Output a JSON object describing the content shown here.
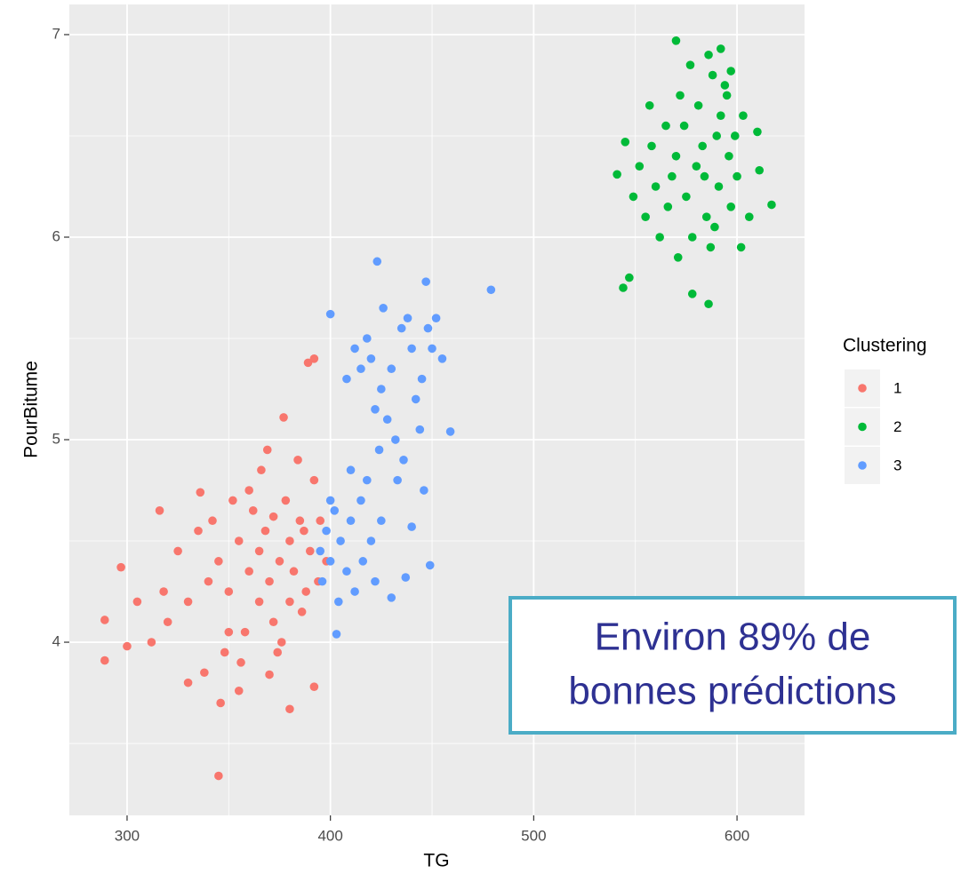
{
  "chart_data": {
    "type": "scatter",
    "x_label": "TG",
    "y_label": "PourBitume",
    "xlim": [
      271.6,
      633.2
    ],
    "ylim": [
      3.145,
      7.149
    ],
    "xticks": [
      300,
      400,
      500,
      600
    ],
    "yticks": [
      4,
      5,
      6,
      7
    ],
    "x_minor_grid": [
      350,
      450,
      550
    ],
    "y_minor_grid": [
      3.5,
      4.5,
      5.5,
      6.5
    ],
    "grid": true,
    "legend_title": "Clustering",
    "legend_position": "right",
    "annotation": {
      "lines": [
        "Environ 89% de",
        "bonnes prédictions"
      ]
    },
    "series": [
      {
        "name": "1",
        "color": "#F8766D",
        "x": [
          375,
          380,
          370,
          385,
          365,
          390,
          360,
          378,
          372,
          388,
          355,
          368,
          382,
          395,
          350,
          362,
          376,
          392,
          345,
          358,
          384,
          340,
          366,
          398,
          335,
          352,
          374,
          330,
          386,
          325,
          348,
          369,
          320,
          360,
          380,
          394,
          342,
          318,
          356,
          372,
          312,
          338,
          365,
          387,
          305,
          350,
          377,
          392,
          389,
          345,
          289,
          289,
          297,
          300,
          380,
          346,
          330,
          392,
          316,
          336,
          370,
          355
        ],
        "values": [
          4.4,
          4.5,
          4.3,
          4.6,
          4.2,
          4.45,
          4.35,
          4.7,
          4.1,
          4.25,
          4.5,
          4.55,
          4.35,
          4.6,
          4.25,
          4.65,
          4.0,
          4.8,
          4.4,
          4.05,
          4.9,
          4.3,
          4.85,
          4.4,
          4.55,
          4.7,
          3.95,
          4.2,
          4.15,
          4.45,
          3.95,
          4.95,
          4.1,
          4.75,
          4.2,
          4.3,
          4.6,
          4.25,
          3.9,
          4.62,
          4.0,
          3.85,
          4.45,
          4.55,
          4.2,
          4.05,
          5.11,
          5.4,
          5.38,
          3.34,
          3.91,
          4.11,
          4.37,
          3.98,
          3.67,
          3.7,
          3.8,
          3.78,
          4.65,
          4.74,
          3.84,
          3.76
        ]
      },
      {
        "name": "2",
        "color": "#00BA38",
        "x": [
          580,
          590,
          575,
          595,
          570,
          585,
          600,
          565,
          588,
          578,
          592,
          560,
          583,
          597,
          572,
          555,
          586,
          568,
          599,
          577,
          562,
          591,
          574,
          552,
          589,
          581,
          596,
          566,
          603,
          558,
          587,
          571,
          594,
          549,
          584,
          610,
          606,
          544,
          617,
          586,
          570,
          541,
          592,
          547,
          578,
          557,
          611,
          602,
          545,
          597
        ],
        "values": [
          6.35,
          6.5,
          6.2,
          6.7,
          6.4,
          6.1,
          6.3,
          6.55,
          6.8,
          6.0,
          6.6,
          6.25,
          6.45,
          6.15,
          6.7,
          6.1,
          6.9,
          6.3,
          6.5,
          6.85,
          6.0,
          6.25,
          6.55,
          6.35,
          6.05,
          6.65,
          6.4,
          6.15,
          6.6,
          6.45,
          5.95,
          5.9,
          6.75,
          6.2,
          6.3,
          6.52,
          6.1,
          5.75,
          6.16,
          5.67,
          6.97,
          6.31,
          6.93,
          5.8,
          5.72,
          6.65,
          6.33,
          5.95,
          6.47,
          6.82
        ]
      },
      {
        "name": "3",
        "color": "#619CFF",
        "x": [
          430,
          440,
          425,
          435,
          420,
          445,
          428,
          438,
          418,
          450,
          432,
          442,
          415,
          426,
          448,
          436,
          422,
          452,
          412,
          444,
          433,
          455,
          424,
          446,
          423,
          447,
          408,
          400,
          405,
          410,
          400,
          415,
          398,
          408,
          420,
          402,
          412,
          395,
          418,
          404,
          425,
          396,
          410,
          400,
          416,
          422,
          403,
          449,
          479,
          459,
          430,
          440,
          437
        ],
        "values": [
          5.35,
          5.45,
          5.25,
          5.55,
          5.4,
          5.3,
          5.1,
          5.6,
          5.5,
          5.45,
          5.0,
          5.2,
          5.35,
          5.65,
          5.55,
          4.9,
          5.15,
          5.6,
          5.45,
          5.05,
          4.8,
          5.4,
          4.95,
          4.75,
          5.88,
          5.78,
          5.3,
          5.62,
          4.5,
          4.6,
          4.4,
          4.7,
          4.55,
          4.35,
          4.5,
          4.65,
          4.25,
          4.45,
          4.8,
          4.2,
          4.6,
          4.3,
          4.85,
          4.7,
          4.4,
          4.3,
          4.04,
          4.38,
          5.74,
          5.04,
          4.22,
          4.57,
          4.32
        ]
      }
    ]
  }
}
